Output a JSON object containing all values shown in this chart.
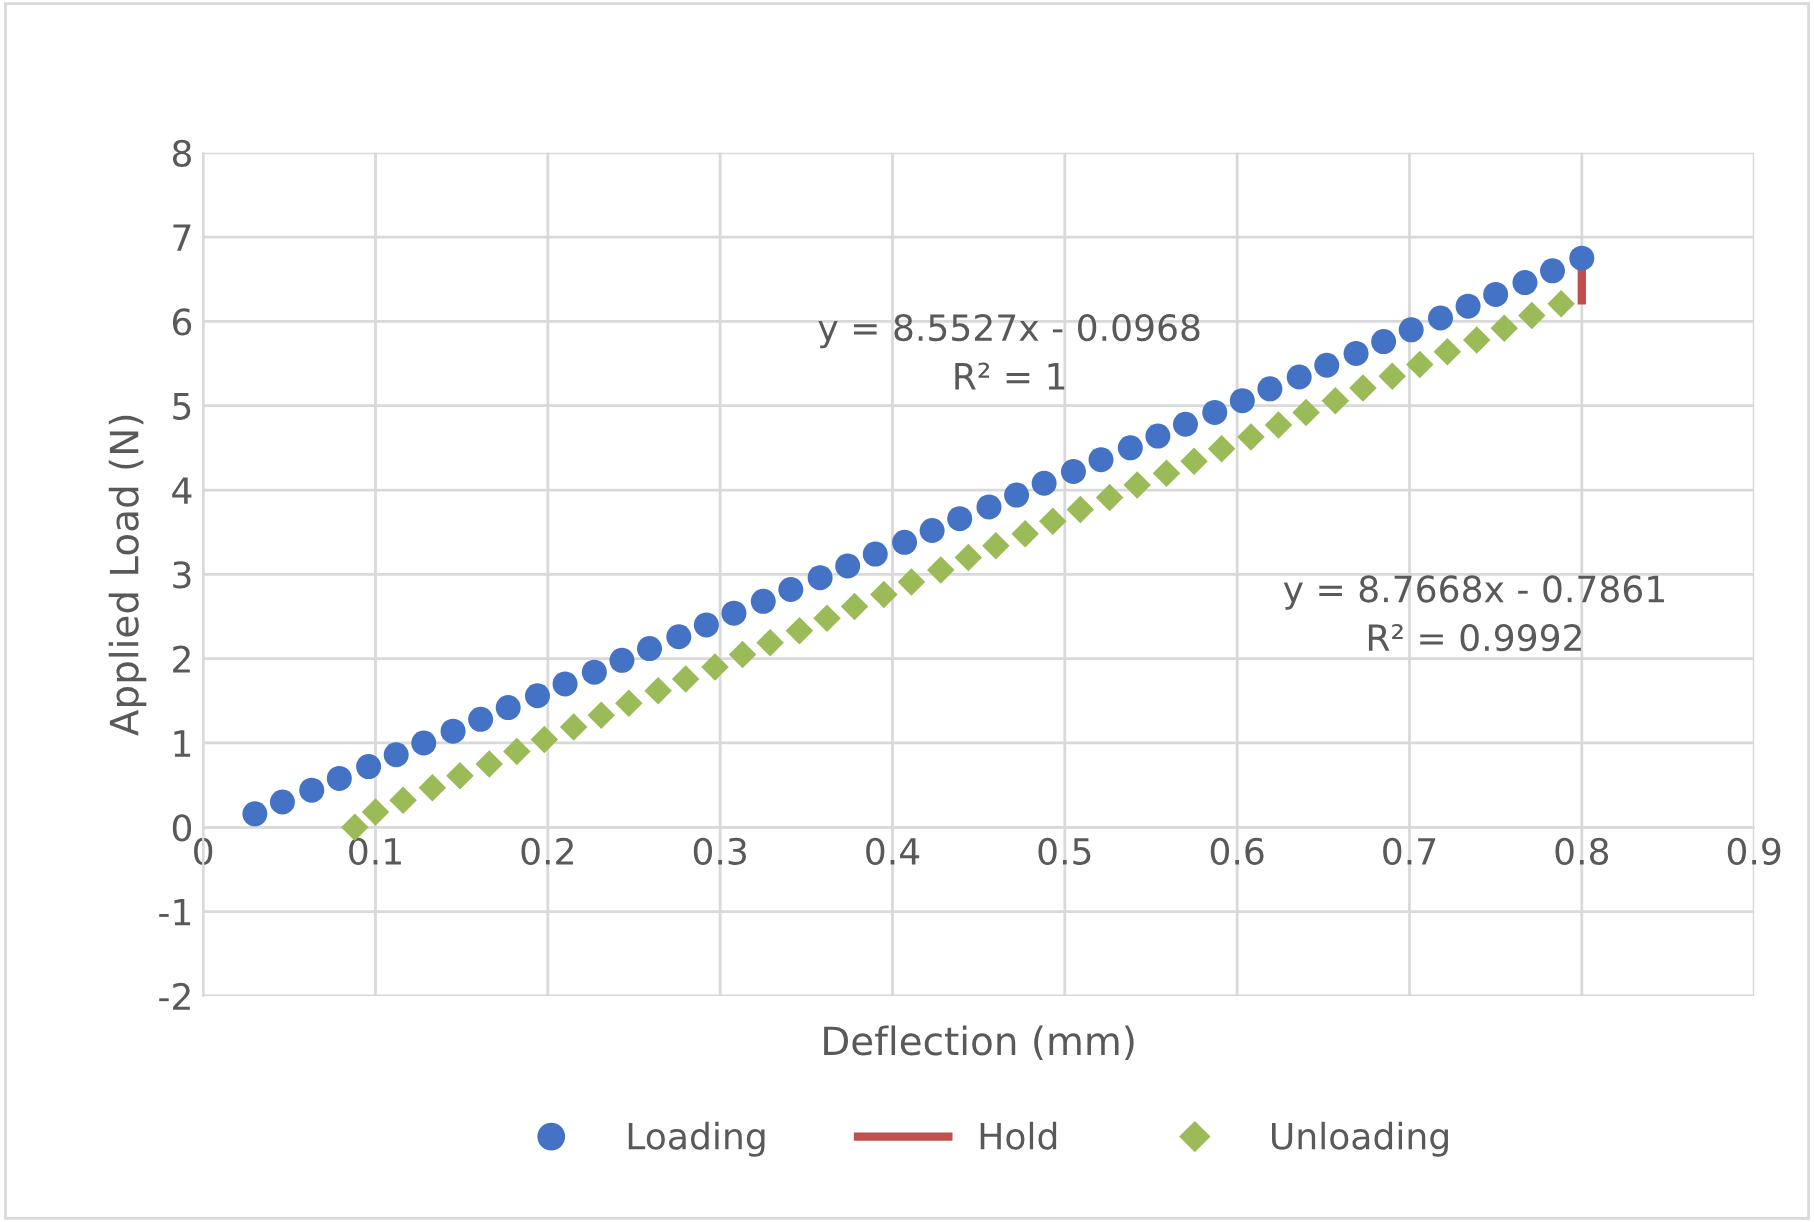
{
  "chart_data": {
    "type": "scatter",
    "xlabel": "Deflection (mm)",
    "ylabel": "Applied Load (N)",
    "xlim": [
      0,
      0.9
    ],
    "xticks": [
      0,
      0.1,
      0.2,
      0.3,
      0.4,
      0.5,
      0.6,
      0.7,
      0.8,
      0.9
    ],
    "ylim": [
      -2,
      8
    ],
    "yticks": [
      -2,
      -1,
      0,
      1,
      2,
      3,
      4,
      5,
      6,
      7,
      8
    ],
    "grid": true,
    "legend": "bottom",
    "annotations": [
      "y = 8.5527x - 0.0968\nR² = 1",
      "y = 8.7668x - 0.7861\nR² = 0.9992"
    ],
    "series": [
      {
        "name": "Loading",
        "marker": "circle",
        "color": "#4472c4",
        "x": [
          0.03,
          0.046,
          0.063,
          0.079,
          0.096,
          0.112,
          0.128,
          0.145,
          0.161,
          0.177,
          0.194,
          0.21,
          0.227,
          0.243,
          0.259,
          0.276,
          0.292,
          0.308,
          0.325,
          0.341,
          0.358,
          0.374,
          0.39,
          0.407,
          0.423,
          0.439,
          0.456,
          0.472,
          0.488,
          0.505,
          0.521,
          0.538,
          0.554,
          0.57,
          0.587,
          0.603,
          0.619,
          0.636,
          0.652,
          0.669,
          0.685,
          0.701,
          0.718,
          0.734,
          0.75,
          0.767,
          0.783,
          0.8
        ],
        "values": [
          0.16,
          0.3,
          0.44,
          0.58,
          0.72,
          0.86,
          1.0,
          1.14,
          1.28,
          1.42,
          1.56,
          1.7,
          1.84,
          1.98,
          2.12,
          2.26,
          2.4,
          2.54,
          2.68,
          2.82,
          2.96,
          3.1,
          3.24,
          3.38,
          3.52,
          3.66,
          3.8,
          3.94,
          4.08,
          4.22,
          4.36,
          4.5,
          4.64,
          4.78,
          4.92,
          5.06,
          5.2,
          5.34,
          5.48,
          5.62,
          5.76,
          5.9,
          6.04,
          6.18,
          6.32,
          6.46,
          6.6,
          6.75
        ]
      },
      {
        "name": "Hold",
        "type": "line",
        "marker": "none",
        "color": "#c0504d",
        "x": [
          0.8,
          0.8
        ],
        "values": [
          6.75,
          6.25
        ]
      },
      {
        "name": "Unloading",
        "marker": "diamond",
        "color": "#9bbb59",
        "x": [
          0.088,
          0.1,
          0.116,
          0.133,
          0.149,
          0.166,
          0.182,
          0.198,
          0.215,
          0.231,
          0.247,
          0.264,
          0.28,
          0.297,
          0.313,
          0.329,
          0.346,
          0.362,
          0.378,
          0.395,
          0.411,
          0.428,
          0.444,
          0.46,
          0.477,
          0.493,
          0.509,
          0.526,
          0.542,
          0.559,
          0.575,
          0.591,
          0.608,
          0.624,
          0.64,
          0.657,
          0.673,
          0.69,
          0.706,
          0.722,
          0.739,
          0.755,
          0.771,
          0.788
        ],
        "values": [
          0.0,
          0.18,
          0.32,
          0.47,
          0.61,
          0.75,
          0.9,
          1.04,
          1.19,
          1.33,
          1.47,
          1.62,
          1.76,
          1.9,
          2.05,
          2.19,
          2.33,
          2.48,
          2.62,
          2.76,
          2.91,
          3.05,
          3.2,
          3.34,
          3.48,
          3.63,
          3.77,
          3.91,
          4.06,
          4.2,
          4.34,
          4.49,
          4.63,
          4.77,
          4.92,
          5.06,
          5.21,
          5.35,
          5.49,
          5.64,
          5.78,
          5.92,
          6.07,
          6.21
        ]
      }
    ]
  }
}
